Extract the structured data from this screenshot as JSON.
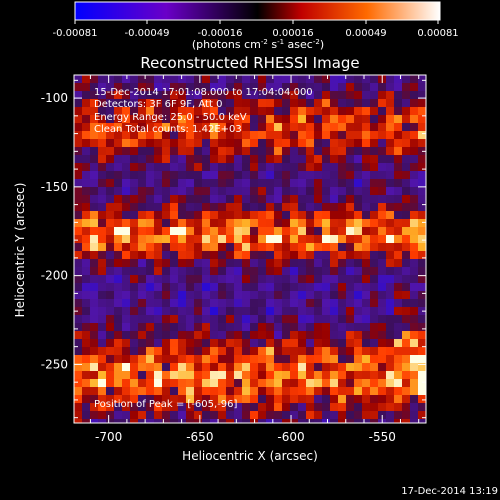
{
  "colorbar": {
    "ticks": [
      "-0.00081",
      "-0.00049",
      "-0.00016",
      "0.00016",
      "0.00049",
      "0.00081"
    ],
    "unit_prefix": "(photons cm",
    "unit_exp1": "-2",
    "unit_mid": " s",
    "unit_exp2": "-1",
    "unit_mid2": " asec",
    "unit_exp3": "-2",
    "unit_suffix": ")"
  },
  "chart_data": {
    "type": "heatmap",
    "title": "Reconstructed RHESSI Image",
    "xlabel": "Heliocentric X (arcsec)",
    "ylabel": "Heliocentric Y (arcsec)",
    "xlim": [
      -719,
      -526
    ],
    "ylim": [
      -283,
      -87
    ],
    "xticks": [
      "-700",
      "-650",
      "-600",
      "-550"
    ],
    "yticks": [
      "-100",
      "-150",
      "-200",
      "-250"
    ],
    "xtick_values": [
      -700,
      -650,
      -600,
      -550
    ],
    "ytick_values": [
      -100,
      -150,
      -200,
      -250
    ],
    "clim": [
      -0.00081,
      0.00081
    ],
    "colormap": [
      "#0000ff",
      "#6a00c8",
      "#000000",
      "#c00000",
      "#ff6a00",
      "#ffffff"
    ],
    "annotations": [
      "15-Dec-2014 17:01:08.000 to 17:04:04.000",
      "Detectors: 3F 6F 9F, Att 0",
      "Energy Range: 25.0 - 50.0 keV",
      "Clean     Total counts: 1.42E+03"
    ],
    "peak_label": "Position of Peak = [-605,-96]",
    "peak_x": -605,
    "peak_y": -96
  },
  "footer": {
    "timestamp": "17-Dec-2014 13:19"
  }
}
